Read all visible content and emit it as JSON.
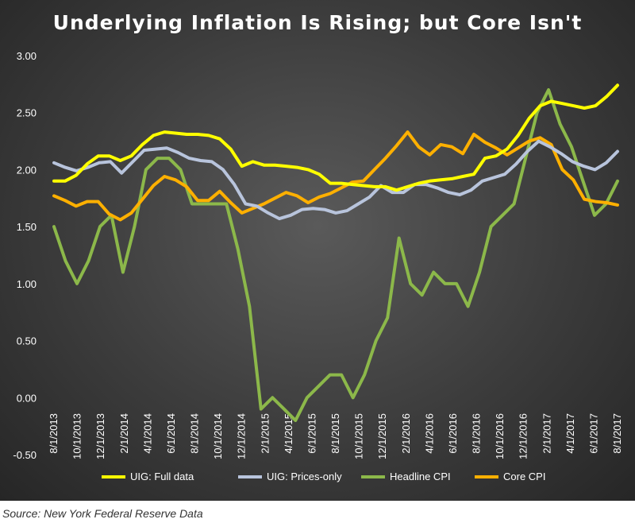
{
  "chart_data": {
    "type": "line",
    "title": "Underlying Inflation Is Rising; but Core Isn't",
    "x_labels": [
      "8/1/2013",
      "10/1/2013",
      "12/1/2013",
      "2/1/2014",
      "4/1/2014",
      "6/1/2014",
      "8/1/2014",
      "10/1/2014",
      "12/1/2014",
      "2/1/2015",
      "4/1/2015",
      "6/1/2015",
      "8/1/2015",
      "10/1/2015",
      "12/1/2015",
      "2/1/2016",
      "4/1/2016",
      "6/1/2016",
      "8/1/2016",
      "10/1/2016",
      "12/1/2016",
      "2/1/2017",
      "4/1/2017",
      "6/1/2017",
      "8/1/2017"
    ],
    "y_ticks": [
      "3.00",
      "2.50",
      "2.00",
      "1.50",
      "1.00",
      "0.50",
      "0.00",
      "-0.50"
    ],
    "ylim": [
      -0.5,
      3.0
    ],
    "grid": false,
    "legend_position": "bottom",
    "series": [
      {
        "name": "UIG: Full data",
        "color": "#ffff00",
        "values": [
          1.9,
          1.9,
          1.95,
          2.05,
          2.12,
          2.12,
          2.08,
          2.12,
          2.22,
          2.3,
          2.33,
          2.32,
          2.31,
          2.31,
          2.3,
          2.27,
          2.18,
          2.03,
          2.07,
          2.04,
          2.04,
          2.03,
          2.02,
          2.0,
          1.96,
          1.88,
          1.88,
          1.87,
          1.86,
          1.85,
          1.85,
          1.82,
          1.85,
          1.88,
          1.9,
          1.91,
          1.92,
          1.94,
          1.96,
          2.1,
          2.12,
          2.18,
          2.3,
          2.45,
          2.56,
          2.6,
          2.58,
          2.56,
          2.54,
          2.56,
          2.64,
          2.74
        ]
      },
      {
        "name": "UIG: Prices-only",
        "color": "#b8c4dc",
        "values": [
          2.06,
          2.02,
          1.99,
          2.02,
          2.06,
          2.07,
          1.97,
          2.07,
          2.17,
          2.18,
          2.19,
          2.15,
          2.1,
          2.08,
          2.07,
          2.0,
          1.87,
          1.7,
          1.68,
          1.62,
          1.57,
          1.6,
          1.65,
          1.66,
          1.65,
          1.62,
          1.64,
          1.7,
          1.76,
          1.86,
          1.8,
          1.8,
          1.87,
          1.87,
          1.84,
          1.8,
          1.78,
          1.82,
          1.9,
          1.93,
          1.96,
          2.05,
          2.16,
          2.25,
          2.2,
          2.14,
          2.07,
          2.03,
          2.0,
          2.06,
          2.16
        ]
      },
      {
        "name": "Headline CPI",
        "color": "#8cb84a",
        "values": [
          1.5,
          1.2,
          1.0,
          1.2,
          1.5,
          1.6,
          1.1,
          1.5,
          2.0,
          2.1,
          2.1,
          2.0,
          1.7,
          1.7,
          1.7,
          1.7,
          1.3,
          0.8,
          -0.1,
          0.0,
          -0.1,
          -0.2,
          0.0,
          0.1,
          0.2,
          0.2,
          0.0,
          0.2,
          0.5,
          0.7,
          1.4,
          1.0,
          0.9,
          1.1,
          1.0,
          1.0,
          0.8,
          1.1,
          1.5,
          1.6,
          1.7,
          2.1,
          2.5,
          2.7,
          2.4,
          2.2,
          1.9,
          1.6,
          1.7,
          1.9
        ]
      },
      {
        "name": "Core CPI",
        "color": "#ffb000",
        "values": [
          1.77,
          1.73,
          1.68,
          1.72,
          1.72,
          1.61,
          1.56,
          1.62,
          1.74,
          1.86,
          1.94,
          1.91,
          1.85,
          1.73,
          1.73,
          1.81,
          1.71,
          1.62,
          1.66,
          1.7,
          1.75,
          1.8,
          1.77,
          1.71,
          1.76,
          1.79,
          1.84,
          1.89,
          1.9,
          2.0,
          2.1,
          2.21,
          2.33,
          2.2,
          2.13,
          2.22,
          2.2,
          2.14,
          2.31,
          2.24,
          2.19,
          2.13,
          2.19,
          2.25,
          2.28,
          2.22,
          2.0,
          1.91,
          1.74,
          1.72,
          1.71,
          1.69
        ]
      }
    ]
  },
  "source_text": "Source: New York Federal Reserve Data"
}
